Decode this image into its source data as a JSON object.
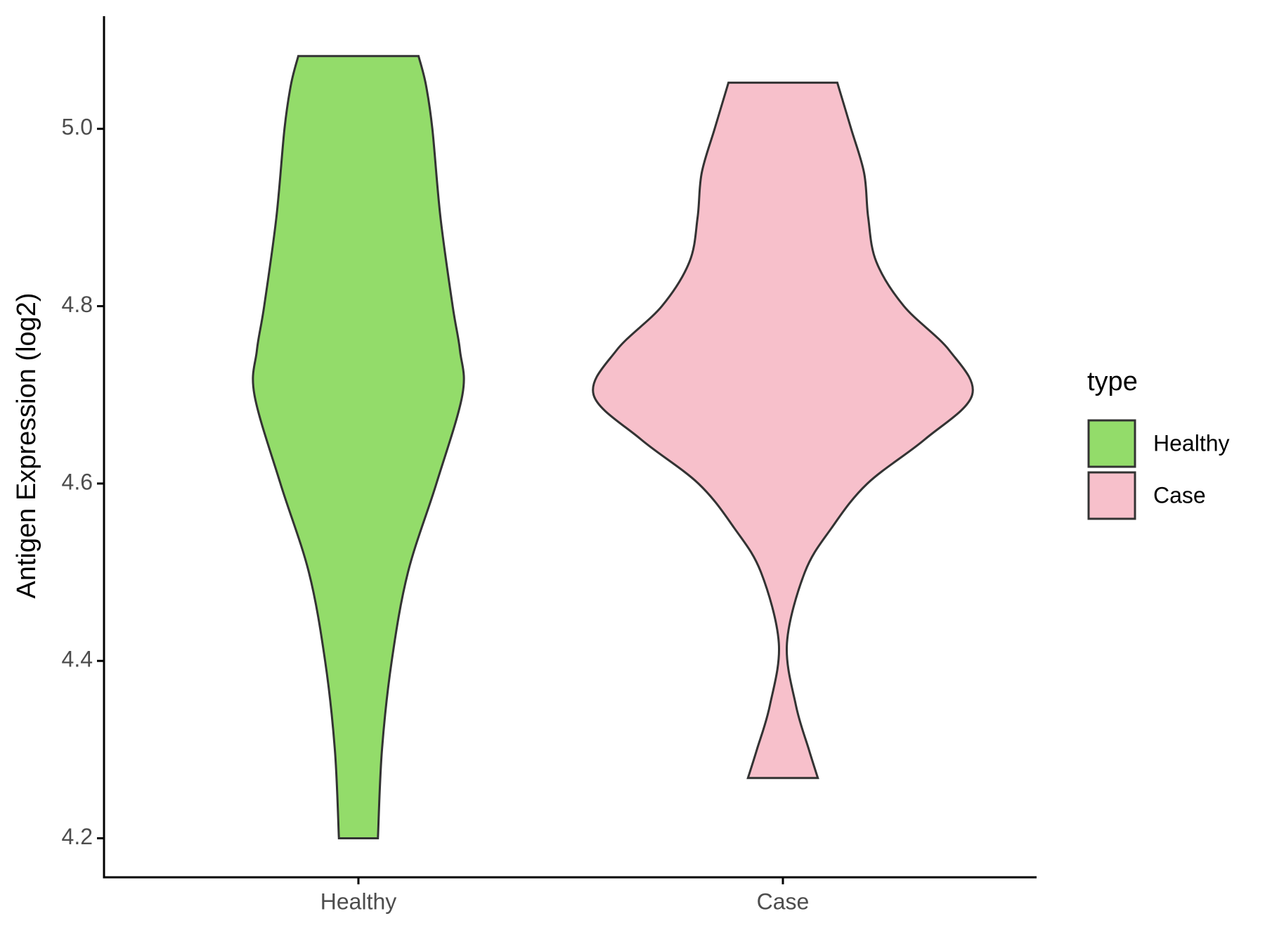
{
  "chart_data": {
    "type": "violin",
    "y_label": "Antigen Expression (log2)",
    "categories": [
      "Healthy",
      "Case"
    ],
    "legend_title": "type",
    "legend_position": "right",
    "ylim": [
      4.156,
      5.127
    ],
    "yticks": [
      4.2,
      4.4,
      4.6,
      4.8,
      {
        "value": 5,
        "label": "5.0"
      }
    ],
    "series": [
      {
        "name": "Healthy",
        "color": "#93dc6a",
        "y": [
          4.2,
          4.3,
          4.4,
          4.5,
          4.6,
          4.7,
          4.75,
          4.8,
          4.9,
          5.0,
          5.05,
          5.082
        ],
        "density": [
          0.24,
          0.29,
          0.41,
          0.61,
          0.96,
          1.28,
          1.25,
          1.16,
          1.01,
          0.91,
          0.83,
          0.74
        ]
      },
      {
        "name": "Case",
        "color": "#f7c0cb",
        "y": [
          4.268,
          4.3,
          4.35,
          4.42,
          4.5,
          4.55,
          4.6,
          4.65,
          4.7,
          4.75,
          4.8,
          4.85,
          4.9,
          4.95,
          5.0,
          5.052
        ],
        "density": [
          0.43,
          0.32,
          0.16,
          0.05,
          0.27,
          0.6,
          1.04,
          1.75,
          2.33,
          2.05,
          1.49,
          1.15,
          1.05,
          1.0,
          0.84,
          0.67
        ]
      }
    ]
  }
}
